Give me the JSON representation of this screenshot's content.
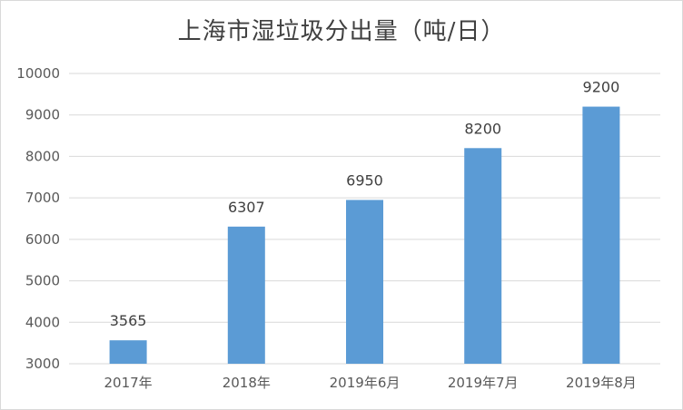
{
  "chart_data": {
    "type": "bar",
    "title": "上海市湿垃圾分出量（吨/日）",
    "categories": [
      "2017年",
      "2018年",
      "2019年6月",
      "2019年7月",
      "2019年8月"
    ],
    "values": [
      3565,
      6307,
      6950,
      8200,
      9200
    ],
    "data_labels": [
      "3565",
      "6307",
      "6950",
      "8200",
      "9200"
    ],
    "yticks": [
      "3000",
      "4000",
      "5000",
      "6000",
      "7000",
      "8000",
      "9000",
      "10000"
    ],
    "ylim": [
      3000,
      10000
    ],
    "xlabel": "",
    "ylabel": "",
    "grid": true,
    "legend": "none",
    "bar_color": "#5b9bd5",
    "grid_color": "#d9d9d9"
  }
}
